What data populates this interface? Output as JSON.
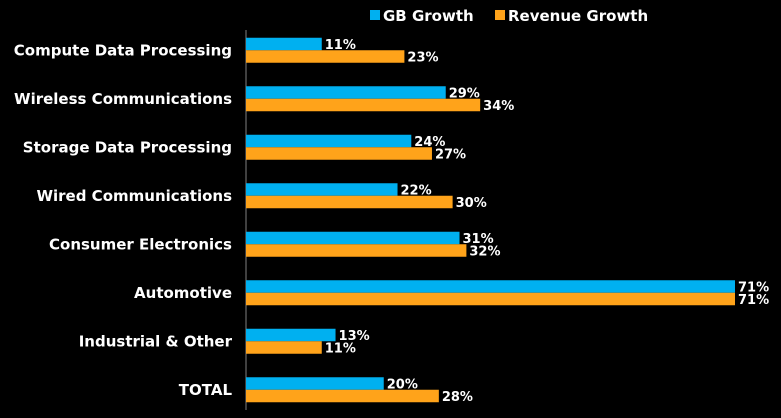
{
  "chart_data": {
    "type": "bar",
    "orientation": "horizontal",
    "title": "",
    "xlabel": "",
    "ylabel": "",
    "xlim": [
      0,
      71
    ],
    "grid": false,
    "legend_position": "top-right",
    "value_suffix": "%",
    "categories": [
      "Compute Data Processing",
      "Wireless Communications",
      "Storage Data Processing",
      "Wired Communications",
      "Consumer Electronics",
      "Automotive",
      "Industrial & Other",
      "TOTAL"
    ],
    "series": [
      {
        "name": "GB Growth",
        "color": "#00B0F0",
        "values": [
          11,
          29,
          24,
          22,
          31,
          71,
          13,
          20
        ]
      },
      {
        "name": "Revenue Growth",
        "color": "#FFA31A",
        "values": [
          23,
          34,
          27,
          30,
          32,
          71,
          11,
          28
        ]
      }
    ]
  }
}
